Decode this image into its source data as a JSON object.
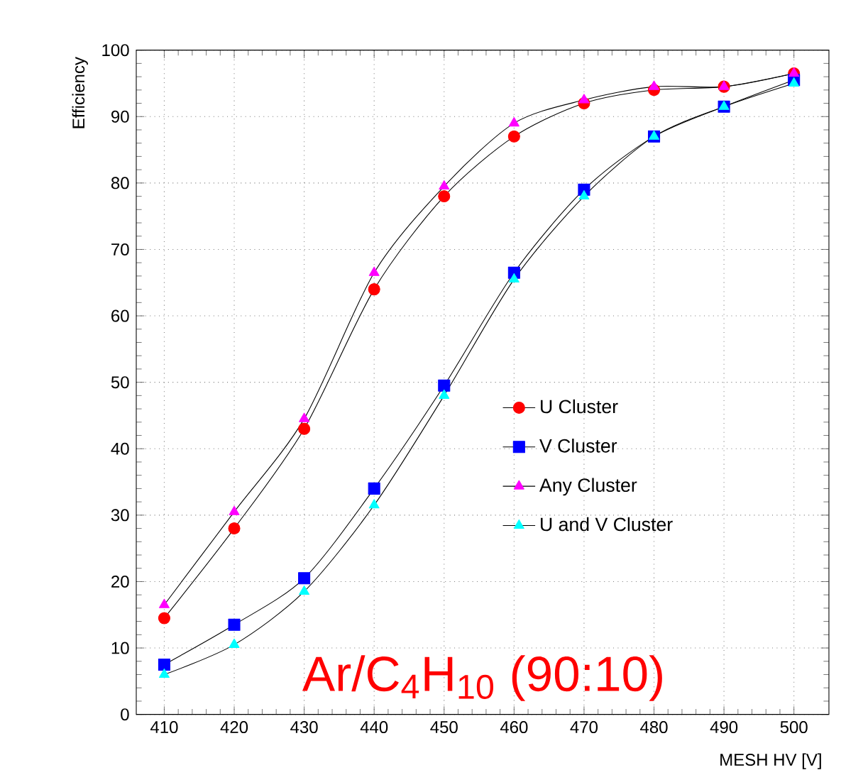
{
  "chart_data": {
    "type": "line",
    "xlabel": "MESH HV [V]",
    "ylabel": "Efficiency",
    "x": [
      410,
      420,
      430,
      440,
      450,
      460,
      470,
      480,
      490,
      500
    ],
    "series": [
      {
        "name": "U Cluster",
        "color": "#ff0000",
        "marker": "circle",
        "values": [
          14.5,
          28,
          43,
          64,
          78,
          87,
          92,
          94,
          94.5,
          96.5
        ]
      },
      {
        "name": "V Cluster",
        "color": "#0000ff",
        "marker": "square",
        "values": [
          7.5,
          13.5,
          20.5,
          34,
          49.5,
          66.5,
          79,
          87,
          91.5,
          95.5
        ]
      },
      {
        "name": "Any Cluster",
        "color": "#ff00ff",
        "marker": "triangle",
        "values": [
          16.5,
          30.5,
          44.5,
          66.5,
          79.5,
          89,
          92.5,
          94.5,
          94.5,
          96.5
        ]
      },
      {
        "name": "U and V Cluster",
        "color": "#00ffff",
        "marker": "triangle down",
        "values": [
          6,
          10.5,
          18.5,
          31.5,
          48,
          65.5,
          78,
          87,
          91.5,
          95
        ]
      }
    ],
    "xlim": [
      406,
      505
    ],
    "ylim": [
      0,
      100
    ],
    "xticks": [
      410,
      420,
      430,
      440,
      450,
      460,
      470,
      480,
      490,
      500
    ],
    "yticks": [
      0,
      10,
      20,
      30,
      40,
      50,
      60,
      70,
      80,
      90,
      100
    ],
    "grid": true,
    "legend": "right",
    "line_style": "solid",
    "annotations": [
      "Ar/C$_{4}$H$_{10}$ (90:10)"
    ]
  }
}
